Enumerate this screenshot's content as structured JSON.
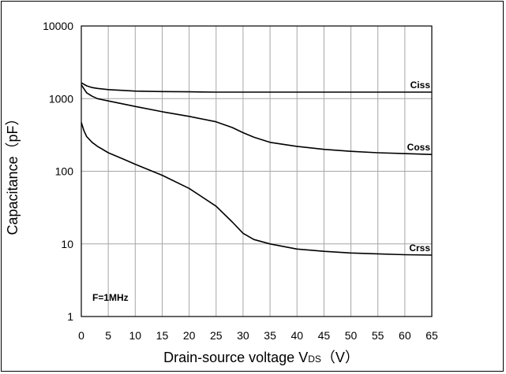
{
  "chart_data": {
    "type": "line",
    "title": "",
    "xlabel": "Drain-source voltage V",
    "xlabel_sub": "DS",
    "xlabel_unit": "（V）",
    "ylabel": "Capacitance（pF）",
    "xlim": [
      0,
      65
    ],
    "ylim": [
      1,
      10000
    ],
    "yscale": "log",
    "grid": true,
    "xticks": [
      "0",
      "5",
      "10",
      "15",
      "20",
      "25",
      "30",
      "35",
      "40",
      "45",
      "50",
      "55",
      "60",
      "65"
    ],
    "yticks": [
      "1",
      "10",
      "100",
      "1000",
      "10000"
    ],
    "annotation": "F=1MHz",
    "legend": "inline-right",
    "series": [
      {
        "name": "Ciss",
        "x": [
          0,
          1,
          2,
          3,
          5,
          10,
          15,
          20,
          25,
          30,
          35,
          40,
          45,
          50,
          55,
          60,
          65
        ],
        "y": [
          1650,
          1500,
          1420,
          1380,
          1330,
          1270,
          1250,
          1240,
          1230,
          1230,
          1230,
          1230,
          1230,
          1230,
          1230,
          1230,
          1230
        ]
      },
      {
        "name": "Coss",
        "x": [
          0,
          1,
          2,
          3,
          5,
          10,
          15,
          20,
          25,
          28,
          30,
          32,
          35,
          40,
          45,
          50,
          55,
          60,
          65
        ],
        "y": [
          1550,
          1200,
          1080,
          1000,
          930,
          780,
          660,
          570,
          480,
          400,
          340,
          295,
          250,
          220,
          200,
          188,
          180,
          175,
          170
        ]
      },
      {
        "name": "Crss",
        "x": [
          0,
          0.5,
          1,
          2,
          3,
          5,
          8,
          10,
          15,
          20,
          25,
          28,
          30,
          32,
          35,
          40,
          45,
          50,
          55,
          60,
          65
        ],
        "y": [
          470,
          360,
          300,
          250,
          220,
          180,
          145,
          125,
          88,
          58,
          33,
          20,
          14,
          11.5,
          10,
          8.5,
          7.9,
          7.5,
          7.3,
          7.1,
          7.0
        ]
      }
    ]
  }
}
